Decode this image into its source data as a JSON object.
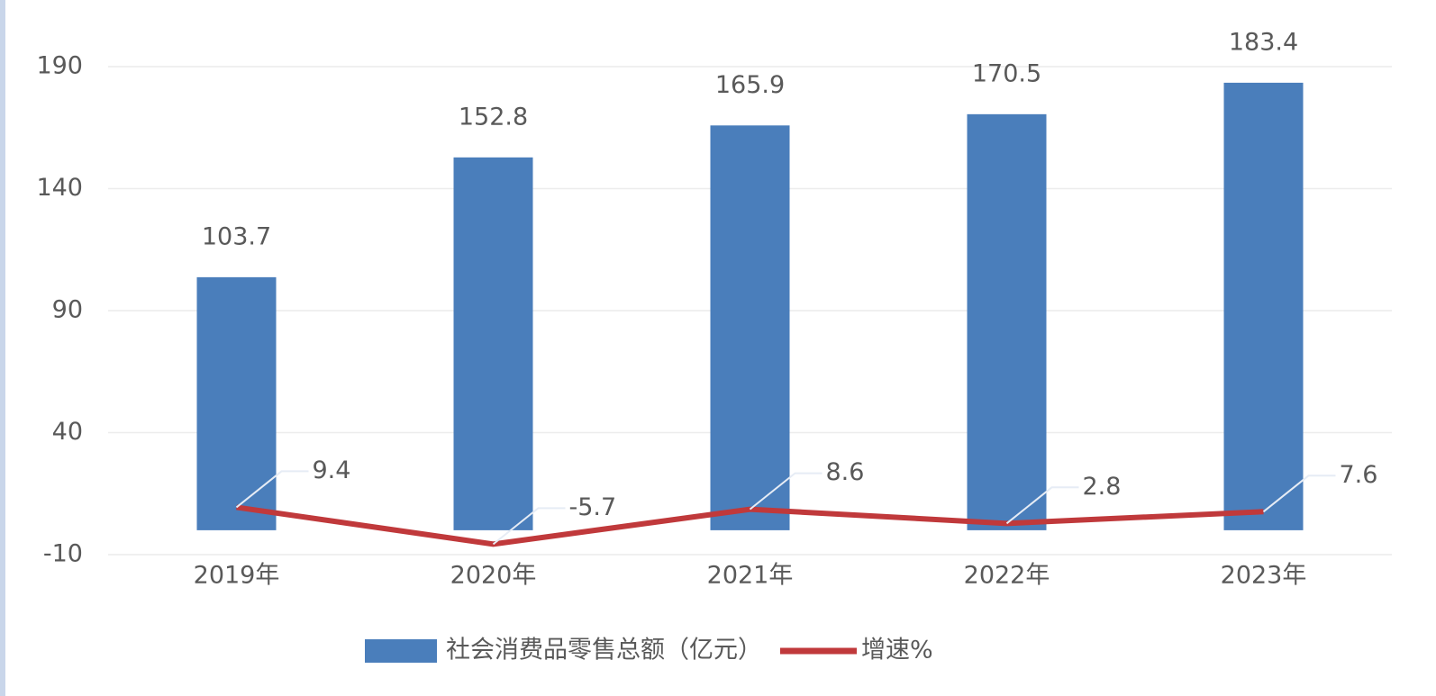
{
  "chart_data": {
    "type": "bar",
    "categories": [
      "2019年",
      "2020年",
      "2021年",
      "2022年",
      "2023年"
    ],
    "series": [
      {
        "name": "社会消费品零售总额（亿元）",
        "color": "#4a7ebb",
        "values": [
          103.7,
          152.8,
          165.9,
          170.5,
          183.4
        ]
      },
      {
        "name": "增速%",
        "color": "#c0393b",
        "type": "line",
        "values": [
          9.4,
          -5.7,
          8.6,
          2.8,
          7.6
        ]
      }
    ],
    "ylim": [
      -10,
      190
    ],
    "yticks": [
      -10,
      40,
      90,
      140,
      190
    ],
    "grid": true,
    "legend": "bottom"
  }
}
